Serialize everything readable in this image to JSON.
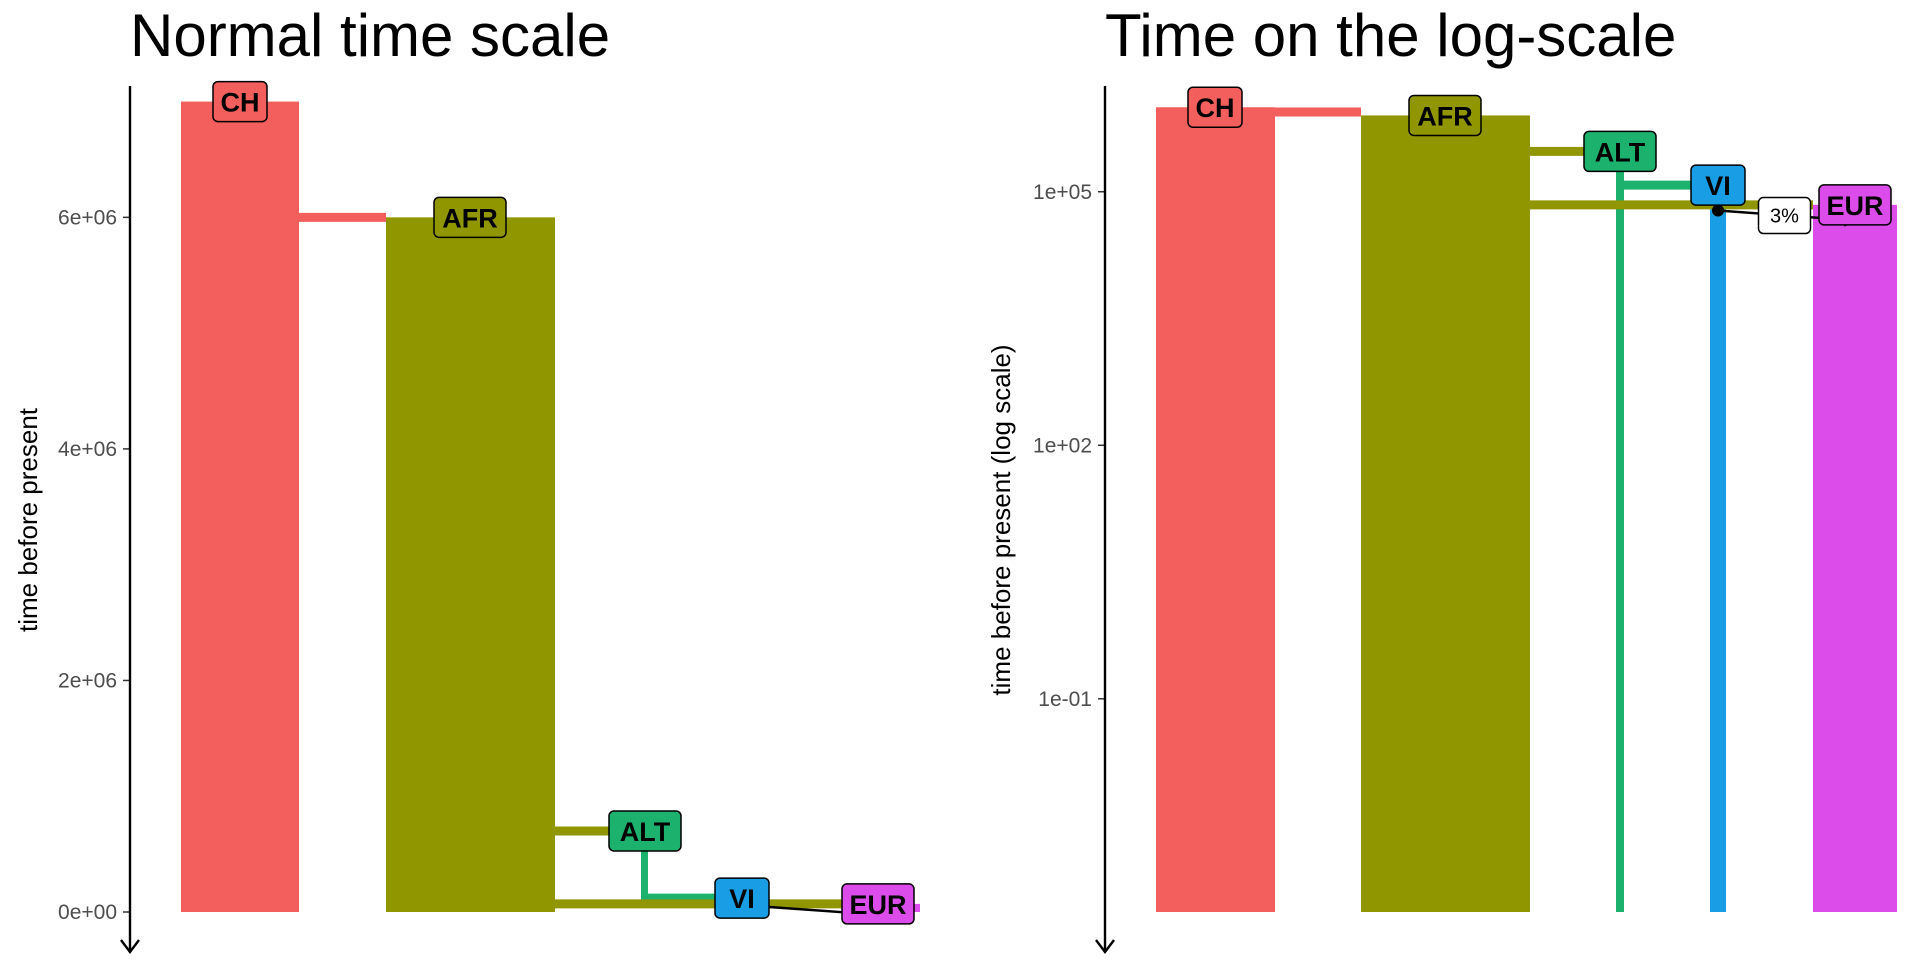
{
  "chart_data": [
    {
      "type": "bar",
      "panel": "left",
      "title": "Normal time scale",
      "ylabel": "time before present",
      "yscale": "linear",
      "ylim": [
        0,
        7100000
      ],
      "yticks": [
        0,
        2000000,
        4000000,
        6000000
      ],
      "yticklabels": [
        "0e+00",
        "2e+06",
        "4e+06",
        "6e+06"
      ],
      "grid": false,
      "populations": [
        {
          "name": "CH",
          "color": "#F25F5C",
          "start": 7000000,
          "end": 0
        },
        {
          "name": "AFR",
          "color": "#909600",
          "start": 6000000,
          "end": 0
        },
        {
          "name": "ALT",
          "color": "#1DB16E",
          "start": 700000,
          "end": 70000
        },
        {
          "name": "VI",
          "color": "#199DE5",
          "start": 120000,
          "end": 60000
        },
        {
          "name": "EUR",
          "color": "#DB4CEA",
          "start": 70000,
          "end": 0
        }
      ],
      "splits": [
        {
          "from": "CH",
          "to": "AFR",
          "time": 6000000
        },
        {
          "from": "AFR",
          "to": "ALT",
          "time": 700000
        },
        {
          "from": "ALT",
          "to": "VI",
          "time": 120000
        },
        {
          "from": "AFR",
          "to": "EUR",
          "time": 70000
        }
      ],
      "gene_flow": [
        {
          "from": "VI",
          "to": "EUR",
          "time": 60000
        }
      ]
    },
    {
      "type": "bar",
      "panel": "right",
      "title": "Time on the log-scale",
      "ylabel": "time before present (log scale)",
      "yscale": "log",
      "ylim": [
        0.0003,
        1600000
      ],
      "yticks": [
        0.1,
        100,
        100000
      ],
      "yticklabels": [
        "1e-01",
        "1e+02",
        "1e+05"
      ],
      "grid": false,
      "populations": [
        {
          "name": "CH",
          "color": "#F25F5C",
          "start": 1000000,
          "end": 0
        },
        {
          "name": "AFR",
          "color": "#909600",
          "start": 800000,
          "end": 0
        },
        {
          "name": "ALT",
          "color": "#1DB16E",
          "start": 300000,
          "end": 0
        },
        {
          "name": "VI",
          "color": "#199DE5",
          "start": 120000,
          "end": 0
        },
        {
          "name": "EUR",
          "color": "#DB4CEA",
          "start": 70000,
          "end": 0
        }
      ],
      "splits": [
        {
          "from": "CH",
          "to": "AFR",
          "time": 880000
        },
        {
          "from": "AFR",
          "to": "ALT",
          "time": 300000
        },
        {
          "from": "ALT",
          "to": "VI",
          "time": 120000
        },
        {
          "from": "AFR",
          "to": "EUR",
          "time": 70000
        }
      ],
      "gene_flow": [
        {
          "from": "VI",
          "to": "EUR",
          "time": 60000,
          "label": "3%"
        }
      ]
    }
  ]
}
